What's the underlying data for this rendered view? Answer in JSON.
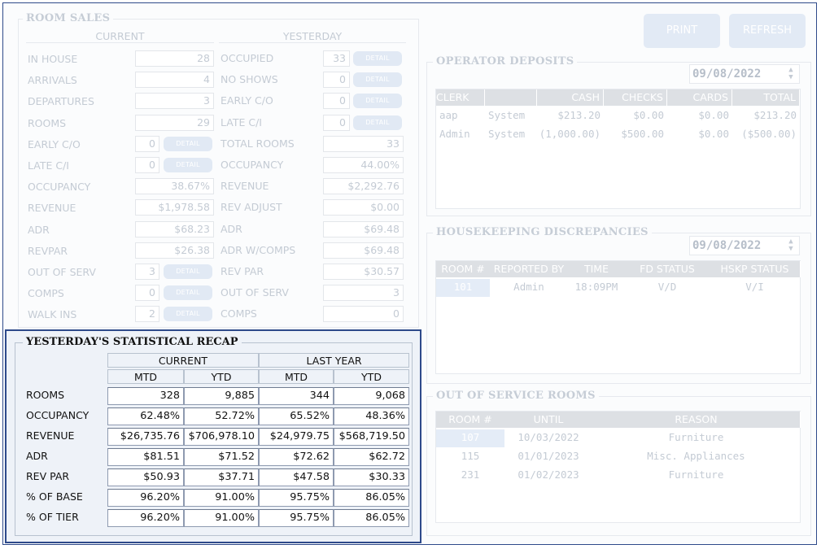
{
  "top_buttons": {
    "print": "PRINT",
    "refresh": "REFRESH"
  },
  "room_sales": {
    "title": "ROOM SALES",
    "current_header": "CURRENT",
    "yesterday_header": "YESTERDAY",
    "detail_label": "DETAIL",
    "current": [
      {
        "label": "IN HOUSE",
        "value": "28"
      },
      {
        "label": "ARRIVALS",
        "value": "4"
      },
      {
        "label": "DEPARTURES",
        "value": "3"
      },
      {
        "label": "ROOMS",
        "value": "29"
      },
      {
        "label": "EARLY C/O",
        "value": "0"
      },
      {
        "label": "LATE C/I",
        "value": "0"
      },
      {
        "label": "OCCUPANCY",
        "value": "38.67%"
      },
      {
        "label": "REVENUE",
        "value": "$1,978.58"
      },
      {
        "label": "ADR",
        "value": "$68.23"
      },
      {
        "label": "REVPAR",
        "value": "$26.38"
      },
      {
        "label": "OUT OF SERV",
        "value": "3"
      },
      {
        "label": "COMPS",
        "value": "0"
      },
      {
        "label": "WALK INS",
        "value": "2"
      }
    ],
    "yesterday": [
      {
        "label": "OCCUPIED",
        "value": "33"
      },
      {
        "label": "NO SHOWS",
        "value": "0"
      },
      {
        "label": "EARLY C/O",
        "value": "0"
      },
      {
        "label": "LATE C/I",
        "value": "0"
      },
      {
        "label": "TOTAL ROOMS",
        "value": "33"
      },
      {
        "label": "OCCUPANCY",
        "value": "44.00%"
      },
      {
        "label": "REVENUE",
        "value": "$2,292.76"
      },
      {
        "label": "REV ADJUST",
        "value": "$0.00"
      },
      {
        "label": "ADR",
        "value": "$69.48"
      },
      {
        "label": "ADR W/COMPS",
        "value": "$69.48"
      },
      {
        "label": "REV PAR",
        "value": "$30.57"
      },
      {
        "label": "OUT OF SERV",
        "value": "3"
      },
      {
        "label": "COMPS",
        "value": "0"
      }
    ]
  },
  "operator_deposits": {
    "title": "OPERATOR DEPOSITS",
    "date": "09/08/2022",
    "columns": [
      "CLERK",
      "",
      "CASH",
      "CHECKS",
      "CARDS",
      "TOTAL"
    ],
    "rows": [
      [
        "aap",
        "System",
        "$213.20",
        "$0.00",
        "$0.00",
        "$213.20"
      ],
      [
        "Admin",
        "System",
        "(1,000.00)",
        "$500.00",
        "$0.00",
        "($500.00)"
      ]
    ]
  },
  "housekeeping": {
    "title": "HOUSEKEEPING DISCREPANCIES",
    "date": "09/08/2022",
    "columns": [
      "ROOM #",
      "REPORTED BY",
      "TIME",
      "FD STATUS",
      "HSKP STATUS"
    ],
    "rows": [
      [
        "101",
        "Admin",
        "18:09PM",
        "V/D",
        "V/I"
      ]
    ]
  },
  "out_of_service": {
    "title": "OUT OF SERVICE ROOMS",
    "columns": [
      "ROOM #",
      "UNTIL",
      "REASON"
    ],
    "rows": [
      [
        "107",
        "10/03/2022",
        "Furniture"
      ],
      [
        "115",
        "01/01/2023",
        "Misc. Appliances"
      ],
      [
        "231",
        "01/02/2023",
        "Furniture"
      ]
    ]
  },
  "recap": {
    "title": "YESTERDAY'S STATISTICAL RECAP",
    "group_current": "CURRENT",
    "group_last_year": "LAST YEAR",
    "sub": [
      "MTD",
      "YTD",
      "MTD",
      "YTD"
    ],
    "rows": [
      {
        "label": "ROOMS",
        "values": [
          "328",
          "9,885",
          "344",
          "9,068"
        ]
      },
      {
        "label": "OCCUPANCY",
        "values": [
          "62.48%",
          "52.72%",
          "65.52%",
          "48.36%"
        ]
      },
      {
        "label": "REVENUE",
        "values": [
          "$26,735.76",
          "$706,978.10",
          "$24,979.75",
          "$568,719.50"
        ]
      },
      {
        "label": "ADR",
        "values": [
          "$81.51",
          "$71.52",
          "$72.62",
          "$62.72"
        ]
      },
      {
        "label": "REV PAR",
        "values": [
          "$50.93",
          "$37.71",
          "$47.58",
          "$30.33"
        ]
      },
      {
        "label": "% OF BASE",
        "values": [
          "96.20%",
          "91.00%",
          "95.75%",
          "86.05%"
        ]
      },
      {
        "label": "% OF TIER",
        "values": [
          "96.20%",
          "91.00%",
          "95.75%",
          "86.05%"
        ]
      }
    ]
  }
}
